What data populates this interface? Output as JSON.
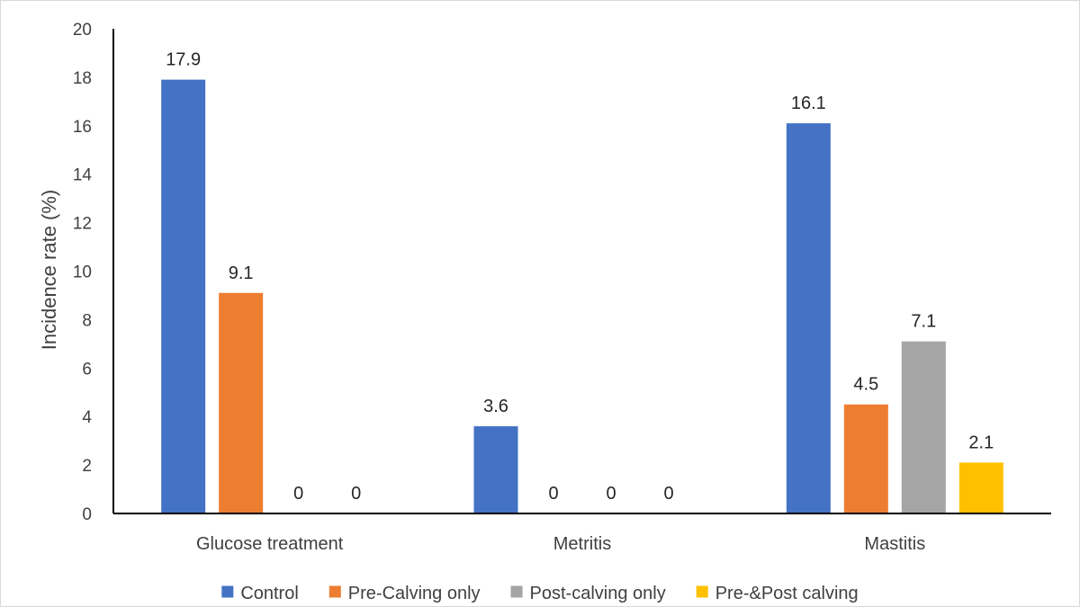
{
  "chart_data": {
    "type": "bar",
    "title": "",
    "xlabel": "",
    "ylabel": "Incidence rate (%)",
    "ylim": [
      0,
      20
    ],
    "ytick_step": 2,
    "grid": false,
    "legend_position": "bottom",
    "categories": [
      "Glucose treatment",
      "Metritis",
      "Mastitis"
    ],
    "series": [
      {
        "name": "Control",
        "color": "#4472C4",
        "values": [
          17.9,
          3.6,
          16.1
        ]
      },
      {
        "name": "Pre-Calving only",
        "color": "#ED7D31",
        "values": [
          9.1,
          0,
          4.5
        ]
      },
      {
        "name": "Post-calving only",
        "color": "#A5A5A5",
        "values": [
          0,
          0,
          7.1
        ]
      },
      {
        "name": "Pre-&Post calving",
        "color": "#FFC000",
        "values": [
          0,
          0,
          2.1
        ]
      }
    ]
  }
}
